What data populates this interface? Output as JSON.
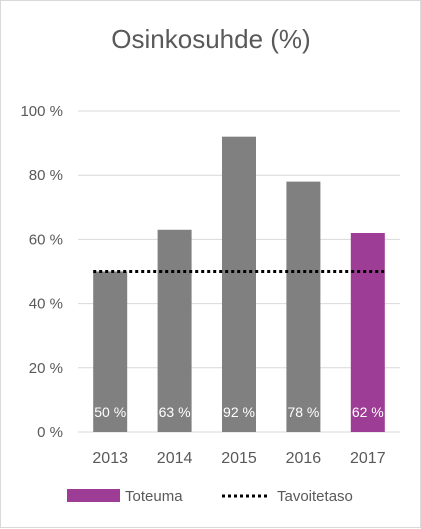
{
  "chart_data": {
    "type": "bar",
    "title": "Osinkosuhde (%)",
    "categories": [
      "2013",
      "2014",
      "2015",
      "2016",
      "2017"
    ],
    "values": [
      50,
      63,
      92,
      78,
      62
    ],
    "data_labels": [
      "50 %",
      "63 %",
      "92 %",
      "78 %",
      "62 %"
    ],
    "ylim": [
      0,
      100
    ],
    "yticks": [
      0,
      20,
      40,
      60,
      80,
      100
    ],
    "ytick_labels": [
      "0 %",
      "20 %",
      "40 %",
      "60 %",
      "80 %",
      "100 %"
    ],
    "grid": true,
    "target": {
      "value": 50,
      "style": "dotted"
    },
    "legend": {
      "placement": "bottom",
      "items": [
        {
          "label": "Toteuma",
          "kind": "bar"
        },
        {
          "label": "Tavoitetaso",
          "kind": "dotted-line"
        }
      ]
    },
    "colors": {
      "bar_history": "#808080",
      "bar_latest": "#9e3d95",
      "target_line": "#000000",
      "grid": "#d9d9d9",
      "text": "#595959",
      "data_label": "#ffffff"
    }
  }
}
